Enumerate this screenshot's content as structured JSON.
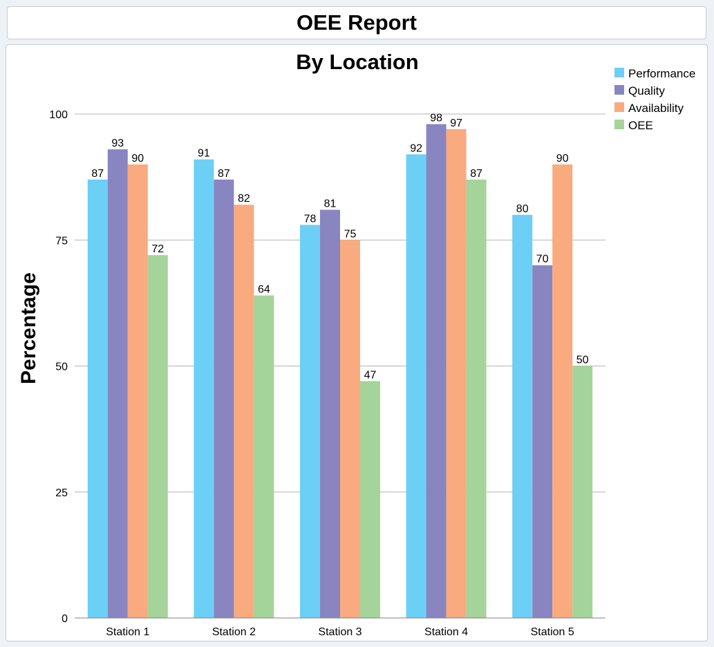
{
  "report": {
    "title": "OEE Report"
  },
  "chart_data": {
    "type": "bar",
    "title": "By Location",
    "xlabel": "",
    "ylabel": "Percentage",
    "ylim": [
      0,
      100
    ],
    "yticks": [
      0,
      25,
      50,
      75,
      100
    ],
    "grid": true,
    "legend_position": "top-right",
    "categories": [
      "Station 1",
      "Station 2",
      "Station 3",
      "Station 4",
      "Station 5"
    ],
    "series": [
      {
        "name": "Performance",
        "color": "#6ccff6",
        "values": [
          87,
          91,
          78,
          92,
          80
        ]
      },
      {
        "name": "Quality",
        "color": "#8985c1",
        "values": [
          93,
          87,
          81,
          98,
          70
        ]
      },
      {
        "name": "Availability",
        "color": "#f9aa7e",
        "values": [
          90,
          82,
          75,
          97,
          90
        ]
      },
      {
        "name": "OEE",
        "color": "#a4d49a",
        "values": [
          72,
          64,
          47,
          87,
          50
        ]
      }
    ]
  }
}
